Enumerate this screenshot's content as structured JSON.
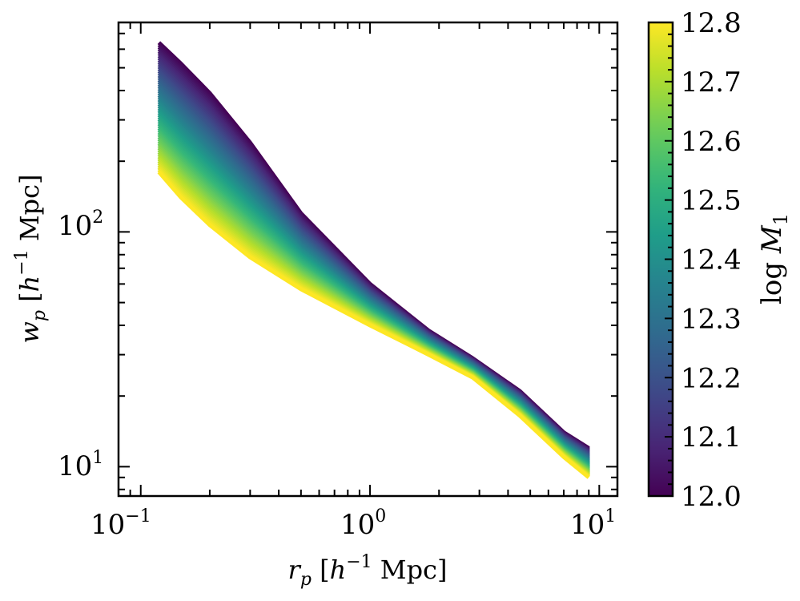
{
  "chart_data": {
    "type": "line",
    "title": "",
    "xscale": "log",
    "yscale": "log",
    "xlim": [
      0.08,
      12
    ],
    "ylim": [
      7.5,
      780
    ],
    "x_tick_labels": [
      {
        "base": "10",
        "exp": "−1"
      },
      {
        "base": "10",
        "exp": "0"
      },
      {
        "base": "10",
        "exp": "1"
      }
    ],
    "y_tick_labels": [
      {
        "base": "10",
        "exp": "1"
      },
      {
        "base": "10",
        "exp": "2"
      }
    ],
    "xlabel": {
      "var": "r",
      "sub": "p",
      "open": " [",
      "h": "h",
      "exp": "−1",
      "unit": " Mpc]"
    },
    "ylabel": {
      "var": "w",
      "sub": "p",
      "open": " [",
      "h": "h",
      "exp": "−1",
      "unit": " Mpc]"
    },
    "colorbar": {
      "label_prefix": "log ",
      "label_var": "M",
      "label_sub": "1",
      "range": [
        12.0,
        12.8
      ],
      "colormap": "viridis",
      "tick_labels": [
        "12.0",
        "12.1",
        "12.2",
        "12.3",
        "12.4",
        "12.5",
        "12.6",
        "12.7",
        "12.8"
      ]
    },
    "x": [
      0.12,
      0.15,
      0.2,
      0.3,
      0.5,
      1.0,
      1.8,
      2.8,
      4.5,
      7.0,
      9.0
    ],
    "series_low_M1": {
      "name": "log M1 = 12.0",
      "values": [
        640,
        520,
        390,
        240,
        120,
        60,
        38,
        29,
        21,
        14,
        12
      ]
    },
    "series_high_M1": {
      "name": "log M1 = 12.8",
      "values": [
        180,
        140,
        107,
        78,
        57,
        40,
        30,
        24,
        16.5,
        11,
        9
      ]
    },
    "n_curves": 60
  }
}
